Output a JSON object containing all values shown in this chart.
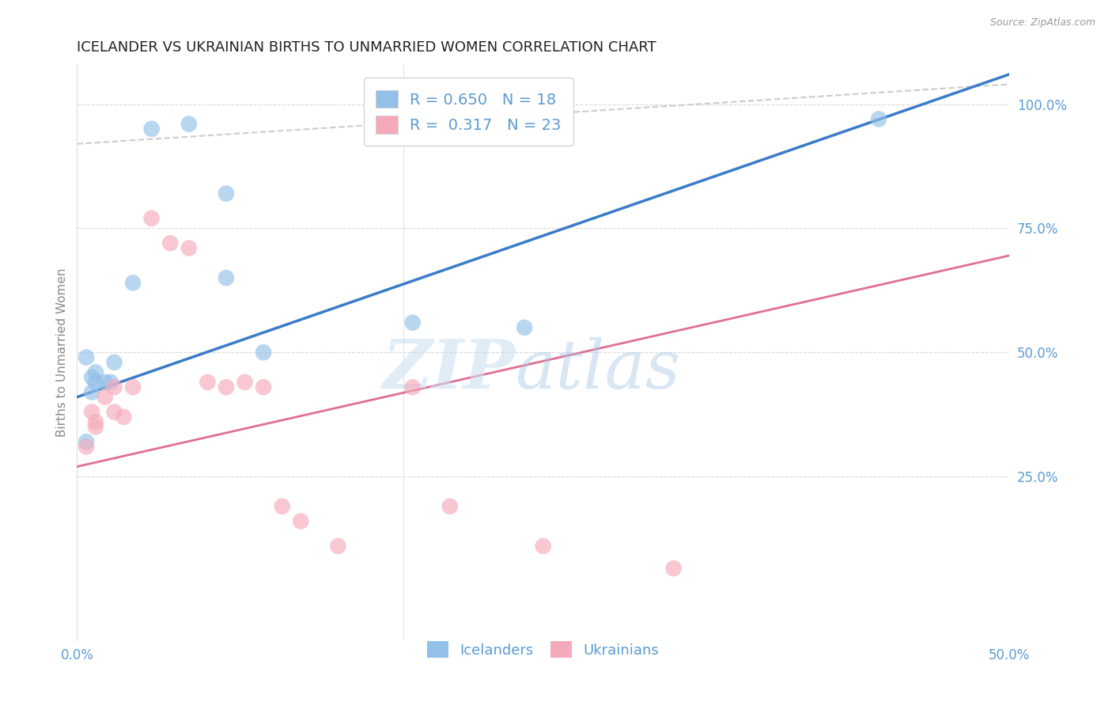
{
  "title": "ICELANDER VS UKRAINIAN BIRTHS TO UNMARRIED WOMEN CORRELATION CHART",
  "source": "Source: ZipAtlas.com",
  "ylabel": "Births to Unmarried Women",
  "xlim": [
    0.0,
    0.5
  ],
  "ylim": [
    -0.08,
    1.08
  ],
  "yticks": [
    0.25,
    0.5,
    0.75,
    1.0
  ],
  "ytick_labels": [
    "25.0%",
    "50.0%",
    "75.0%",
    "100.0%"
  ],
  "xtick_labels": [
    "0.0%",
    "50.0%"
  ],
  "background_color": "#ffffff",
  "grid_color": "#d0d0d0",
  "title_color": "#222222",
  "axis_color": "#5b9bd5",
  "ylabel_color": "#888888",
  "icelander_R": 0.65,
  "icelander_N": 18,
  "ukrainian_R": 0.317,
  "ukrainian_N": 23,
  "icelander_color": "#92c0e8",
  "ukrainian_color": "#f5aabb",
  "icelander_line_color": "#3a7cc8",
  "ukrainian_line_color": "#e07090",
  "icelander_x": [
    0.005,
    0.04,
    0.06,
    0.005,
    0.008,
    0.008,
    0.01,
    0.01,
    0.015,
    0.018,
    0.02,
    0.03,
    0.08,
    0.08,
    0.1,
    0.18,
    0.24,
    0.43
  ],
  "icelander_y": [
    0.32,
    0.95,
    0.96,
    0.49,
    0.45,
    0.42,
    0.44,
    0.46,
    0.44,
    0.44,
    0.48,
    0.64,
    0.82,
    0.65,
    0.5,
    0.56,
    0.55,
    0.97
  ],
  "ukrainian_x": [
    0.005,
    0.008,
    0.01,
    0.01,
    0.015,
    0.02,
    0.02,
    0.025,
    0.03,
    0.04,
    0.05,
    0.06,
    0.07,
    0.08,
    0.09,
    0.1,
    0.11,
    0.12,
    0.14,
    0.18,
    0.2,
    0.25,
    0.32
  ],
  "ukrainian_y": [
    0.31,
    0.38,
    0.36,
    0.35,
    0.41,
    0.43,
    0.38,
    0.37,
    0.43,
    0.77,
    0.72,
    0.71,
    0.44,
    0.43,
    0.44,
    0.43,
    0.19,
    0.16,
    0.11,
    0.43,
    0.19,
    0.11,
    0.065
  ],
  "line_intercept_ice": 0.41,
  "line_slope_ice": 1.3,
  "line_intercept_ukr": 0.27,
  "line_slope_ukr": 0.85,
  "diag_color": "#cccccc",
  "watermark_zip_color": "#c8dff5",
  "watermark_atlas_color": "#a0c8f0"
}
